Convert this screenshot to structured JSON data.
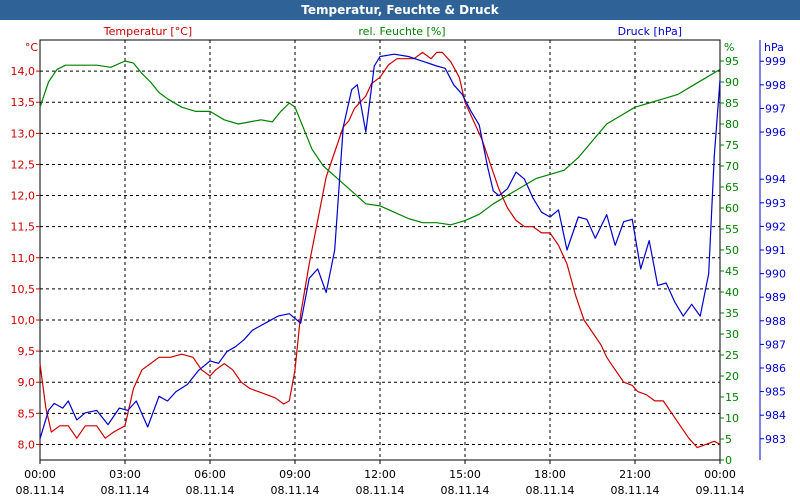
{
  "window": {
    "title": "Temperatur, Feuchte & Druck"
  },
  "colors": {
    "temperature": "#cc0000",
    "humidity": "#008000",
    "pressure": "#0000cc",
    "titlebar": "#2f6397"
  },
  "chart_data": {
    "type": "line",
    "grid": true,
    "x_ticks": [
      {
        "time": "00:00",
        "date": "08.11.14"
      },
      {
        "time": "03:00",
        "date": "08.11.14"
      },
      {
        "time": "06:00",
        "date": "08.11.14"
      },
      {
        "time": "09:00",
        "date": "08.11.14"
      },
      {
        "time": "12:00",
        "date": "08.11.14"
      },
      {
        "time": "15:00",
        "date": "08.11.14"
      },
      {
        "time": "18:00",
        "date": "08.11.14"
      },
      {
        "time": "21:00",
        "date": "08.11.14"
      },
      {
        "time": "00:00",
        "date": "09.11.14"
      }
    ],
    "x_range_hours": [
      0,
      24
    ],
    "axes": {
      "temperature": {
        "label": "Temperatur [°C]",
        "unit": "°C",
        "range": [
          7.75,
          14.5
        ],
        "ticks": [
          "8,0",
          "8,5",
          "9,0",
          "9,5",
          "10,0",
          "10,5",
          "11,0",
          "11,5",
          "12,0",
          "12,5",
          "13,0",
          "13,5",
          "14,0"
        ]
      },
      "humidity": {
        "label": "rel. Feuchte [%]",
        "unit": "%",
        "range": [
          0,
          100
        ],
        "ticks": [
          "0",
          "5",
          "10",
          "15",
          "20",
          "25",
          "30",
          "35",
          "40",
          "45",
          "50",
          "55",
          "60",
          "65",
          "70",
          "75",
          "80",
          "85",
          "90",
          "95"
        ]
      },
      "pressure": {
        "label": "Druck [hPa]",
        "unit": "hPa",
        "range": [
          982.1,
          999.9
        ],
        "ticks": [
          "983",
          "984",
          "985",
          "986",
          "987",
          "988",
          "989",
          "990",
          "991",
          "992",
          "993",
          "994",
          "996",
          "997",
          "998",
          "999"
        ]
      }
    },
    "series": [
      {
        "name": "Temperatur [°C]",
        "axis": "temperature",
        "x": [
          0,
          0.2,
          0.4,
          0.7,
          1.0,
          1.3,
          1.6,
          2.0,
          2.3,
          2.6,
          3.0,
          3.3,
          3.6,
          3.9,
          4.2,
          4.6,
          5.0,
          5.4,
          5.7,
          6.0,
          6.2,
          6.5,
          6.8,
          7.1,
          7.4,
          7.7,
          8.0,
          8.3,
          8.6,
          8.8,
          9.0,
          9.2,
          9.5,
          9.8,
          10.1,
          10.4,
          10.7,
          10.9,
          11.1,
          11.3,
          11.5,
          11.7,
          12.0,
          12.3,
          12.6,
          12.9,
          13.2,
          13.5,
          13.8,
          14.0,
          14.2,
          14.5,
          14.8,
          15.0,
          15.3,
          15.6,
          15.9,
          16.2,
          16.5,
          16.8,
          17.1,
          17.4,
          17.7,
          18.0,
          18.3,
          18.6,
          18.9,
          19.2,
          19.5,
          19.8,
          20.0,
          20.3,
          20.6,
          20.9,
          21.1,
          21.4,
          21.7,
          22.0,
          22.3,
          22.6,
          22.9,
          23.2,
          23.5,
          23.8,
          24.0
        ],
        "values": [
          9.3,
          8.6,
          8.2,
          8.3,
          8.3,
          8.1,
          8.3,
          8.3,
          8.1,
          8.2,
          8.3,
          8.9,
          9.2,
          9.3,
          9.4,
          9.4,
          9.45,
          9.4,
          9.2,
          9.1,
          9.2,
          9.3,
          9.2,
          9.0,
          8.9,
          8.85,
          8.8,
          8.75,
          8.65,
          8.7,
          9.2,
          10.1,
          10.9,
          11.6,
          12.3,
          12.7,
          13.1,
          13.2,
          13.4,
          13.5,
          13.6,
          13.8,
          13.9,
          14.1,
          14.2,
          14.2,
          14.2,
          14.3,
          14.2,
          14.3,
          14.3,
          14.15,
          13.9,
          13.5,
          13.2,
          12.9,
          12.5,
          12.1,
          11.8,
          11.6,
          11.5,
          11.5,
          11.4,
          11.4,
          11.2,
          10.9,
          10.4,
          10.0,
          9.8,
          9.6,
          9.4,
          9.2,
          9.0,
          8.95,
          8.85,
          8.8,
          8.7,
          8.7,
          8.5,
          8.3,
          8.1,
          7.95,
          8.0,
          8.05,
          8.0
        ]
      },
      {
        "name": "rel. Feuchte [%]",
        "axis": "humidity",
        "x": [
          0,
          0.3,
          0.6,
          0.9,
          1.2,
          1.5,
          2.0,
          2.5,
          3.0,
          3.3,
          3.6,
          3.9,
          4.2,
          4.5,
          5.0,
          5.5,
          6.0,
          6.5,
          7.0,
          7.4,
          7.8,
          8.2,
          8.5,
          8.8,
          9.0,
          9.3,
          9.6,
          10.0,
          10.5,
          11.0,
          11.5,
          12.0,
          12.5,
          13.0,
          13.5,
          14.0,
          14.5,
          15.0,
          15.5,
          16.0,
          16.5,
          17.0,
          17.5,
          18.0,
          18.5,
          19.0,
          19.5,
          20.0,
          20.5,
          21.0,
          21.5,
          22.0,
          22.5,
          23.0,
          23.5,
          24.0
        ],
        "values": [
          84,
          90,
          93,
          94,
          94,
          94,
          94,
          93.5,
          95,
          94.5,
          92,
          90,
          87.5,
          86,
          84,
          83,
          83,
          81,
          80,
          80.5,
          81,
          80.5,
          83,
          85,
          84,
          79,
          74,
          70,
          67,
          64,
          61,
          60.5,
          59,
          57.5,
          56.5,
          56.5,
          56,
          57,
          58.5,
          61,
          63,
          65,
          67,
          68,
          69,
          72,
          76,
          80,
          82,
          84,
          85,
          86,
          87,
          89,
          91,
          93
        ]
      },
      {
        "name": "Druck [hPa]",
        "axis": "pressure",
        "x": [
          0,
          0.3,
          0.5,
          0.8,
          1.0,
          1.3,
          1.6,
          2.0,
          2.4,
          2.8,
          3.1,
          3.4,
          3.8,
          4.2,
          4.5,
          4.8,
          5.2,
          5.6,
          6.0,
          6.3,
          6.6,
          6.9,
          7.2,
          7.5,
          7.8,
          8.1,
          8.4,
          8.8,
          9.2,
          9.5,
          9.8,
          10.1,
          10.4,
          10.7,
          11.0,
          11.2,
          11.5,
          11.8,
          12.0,
          12.5,
          13.0,
          13.5,
          14.0,
          14.3,
          14.6,
          14.9,
          15.2,
          15.5,
          15.8,
          16.0,
          16.2,
          16.5,
          16.8,
          17.1,
          17.4,
          17.7,
          18.0,
          18.3,
          18.6,
          19.0,
          19.3,
          19.6,
          20.0,
          20.3,
          20.6,
          20.9,
          21.2,
          21.5,
          21.8,
          22.1,
          22.4,
          22.7,
          23.0,
          23.3,
          23.6,
          23.8,
          24.0
        ],
        "values": [
          983.0,
          984.2,
          984.5,
          984.3,
          984.6,
          983.8,
          984.1,
          984.2,
          983.6,
          984.3,
          984.2,
          984.6,
          983.5,
          984.8,
          984.6,
          985.0,
          985.3,
          985.9,
          986.3,
          986.2,
          986.7,
          986.9,
          987.2,
          987.6,
          987.8,
          988.0,
          988.2,
          988.3,
          987.9,
          989.8,
          990.2,
          989.2,
          991.0,
          996.2,
          997.8,
          998.0,
          996.0,
          998.8,
          999.2,
          999.3,
          999.2,
          999.0,
          998.8,
          998.7,
          998.0,
          997.6,
          996.9,
          996.3,
          994.5,
          993.5,
          993.3,
          993.6,
          994.3,
          994.0,
          993.2,
          992.6,
          992.4,
          992.7,
          991.0,
          992.4,
          992.3,
          991.5,
          992.5,
          991.2,
          992.2,
          992.3,
          990.2,
          991.4,
          989.5,
          989.6,
          988.8,
          988.2,
          988.7,
          988.2,
          990.0,
          995.0,
          998.2
        ]
      }
    ]
  }
}
